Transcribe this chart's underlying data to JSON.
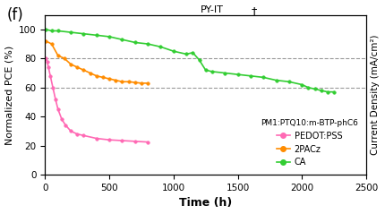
{
  "title_label": "(f)",
  "top_label": "PY-IT",
  "top_marker": "†",
  "xlabel": "Time (h)",
  "ylabel_left": "Normalized PCE (%)",
  "ylabel_right": "Current Density (mA/cm²)",
  "xlim": [
    0,
    2500
  ],
  "ylim": [
    0,
    110
  ],
  "xticks": [
    0,
    500,
    1000,
    1500,
    2000,
    2500
  ],
  "yticks": [
    0,
    20,
    40,
    60,
    80,
    100
  ],
  "dashed_lines": [
    80,
    60
  ],
  "legend_title": "PM1:PTQ10:m-BTP-phC6",
  "series": {
    "PEDOT:PSS": {
      "color": "#FF69B4",
      "x": [
        5,
        15,
        25,
        40,
        60,
        80,
        100,
        130,
        160,
        200,
        250,
        300,
        400,
        500,
        600,
        700,
        800
      ],
      "y": [
        80,
        78,
        74,
        68,
        60,
        52,
        45,
        38,
        34,
        30,
        28,
        27,
        25,
        24,
        23.5,
        23,
        22.5
      ]
    },
    "2PACz": {
      "color": "#FF8C00",
      "x": [
        5,
        50,
        100,
        150,
        200,
        250,
        300,
        350,
        400,
        450,
        500,
        550,
        600,
        650,
        700,
        750,
        800
      ],
      "y": [
        92,
        90,
        82,
        80,
        76,
        74,
        72,
        70,
        68,
        67,
        66,
        65,
        64,
        64,
        63.5,
        63,
        63
      ]
    },
    "CA": {
      "color": "#32CD32",
      "x": [
        5,
        50,
        100,
        200,
        300,
        400,
        500,
        600,
        700,
        800,
        900,
        1000,
        1100,
        1150,
        1200,
        1250,
        1300,
        1400,
        1500,
        1600,
        1700,
        1800,
        1900,
        2000,
        2050,
        2100,
        2150,
        2200,
        2250
      ],
      "y": [
        100,
        99,
        99,
        98,
        97,
        96,
        95,
        93,
        91,
        90,
        88,
        85,
        83,
        84,
        79,
        72,
        71,
        70,
        69,
        68,
        67,
        65,
        64,
        62,
        60,
        59,
        58,
        57,
        57
      ]
    }
  },
  "bg_color": "#ffffff"
}
